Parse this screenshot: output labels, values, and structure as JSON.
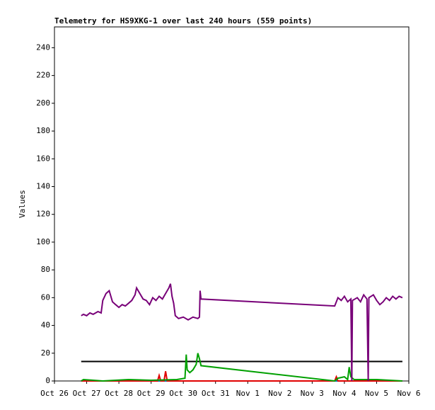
{
  "chart_data": {
    "type": "line",
    "title": "Telemetry for HS9XKG-1 over last 240 hours (559 points)",
    "y_label": "Values",
    "xlim": [
      0,
      11
    ],
    "xticks": [
      {
        "value": 0,
        "label": "Oct 26"
      },
      {
        "value": 1,
        "label": "Oct 27"
      },
      {
        "value": 2,
        "label": "Oct 28"
      },
      {
        "value": 3,
        "label": "Oct 29"
      },
      {
        "value": 4,
        "label": "Oct 30"
      },
      {
        "value": 5,
        "label": "Oct 31"
      },
      {
        "value": 6,
        "label": "Nov 1"
      },
      {
        "value": 7,
        "label": "Nov 2"
      },
      {
        "value": 8,
        "label": "Nov 3"
      },
      {
        "value": 9,
        "label": "Nov 4"
      },
      {
        "value": 10,
        "label": "Nov 5"
      },
      {
        "value": 11,
        "label": "Nov 6"
      }
    ],
    "ylim": [
      0,
      255
    ],
    "yticks": [
      0,
      20,
      40,
      60,
      80,
      100,
      120,
      140,
      160,
      180,
      200,
      220,
      240
    ],
    "series": [
      {
        "color": "#000000",
        "x": [
          0.83,
          10.8
        ],
        "values": [
          14,
          14
        ]
      },
      {
        "color": "#0070c0",
        "x": [
          0.83,
          10.8
        ],
        "values": [
          0,
          0
        ]
      },
      {
        "color": "#e00000",
        "x": [
          0.83,
          3.2,
          3.25,
          3.3,
          3.4,
          3.45,
          3.5,
          4.5,
          8.7,
          8.75,
          8.8,
          10.8
        ],
        "values": [
          0,
          0,
          4,
          0,
          0,
          7,
          0,
          0,
          0,
          3,
          0,
          0
        ]
      },
      {
        "color": "#00a000",
        "x": [
          0.83,
          0.9,
          1.5,
          2.3,
          3.0,
          3.8,
          4.05,
          4.09,
          4.12,
          4.2,
          4.3,
          4.4,
          4.45,
          4.5,
          4.55,
          8.7,
          8.8,
          9.0,
          9.1,
          9.15,
          9.2,
          9.3,
          10.0,
          10.8
        ],
        "values": [
          0,
          1,
          0,
          1,
          0.5,
          1,
          2,
          19,
          8,
          6,
          8,
          12,
          20,
          16,
          11,
          0,
          2,
          3,
          1,
          10,
          3,
          1,
          1,
          0
        ]
      },
      {
        "color": "#780078",
        "x": [
          0.83,
          0.9,
          1.0,
          1.1,
          1.2,
          1.35,
          1.45,
          1.5,
          1.6,
          1.7,
          1.8,
          1.9,
          2.0,
          2.1,
          2.2,
          2.3,
          2.4,
          2.5,
          2.55,
          2.65,
          2.75,
          2.85,
          2.95,
          3.05,
          3.15,
          3.25,
          3.35,
          3.45,
          3.55,
          3.6,
          3.65,
          3.7,
          3.75,
          3.85,
          4.0,
          4.15,
          4.3,
          4.45,
          4.5,
          4.52,
          4.55,
          8.7,
          8.8,
          8.9,
          9.0,
          9.1,
          9.2,
          9.23,
          9.25,
          9.4,
          9.5,
          9.6,
          9.7,
          9.74,
          9.76,
          9.9,
          10.0,
          10.1,
          10.2,
          10.3,
          10.4,
          10.5,
          10.6,
          10.7,
          10.8
        ],
        "values": [
          47,
          48,
          47,
          49,
          48,
          50,
          49,
          58,
          63,
          65,
          57,
          55,
          53,
          55,
          54,
          56,
          58,
          62,
          67,
          63,
          59,
          58,
          55,
          60,
          58,
          61,
          59,
          63,
          67,
          70,
          61,
          56,
          47,
          45,
          46,
          44,
          46,
          45,
          46,
          65,
          59,
          54,
          60,
          58,
          61,
          57,
          59,
          0,
          58,
          60,
          57,
          62,
          59,
          0,
          60,
          62,
          58,
          55,
          57,
          60,
          58,
          61,
          59,
          61,
          60
        ]
      }
    ]
  }
}
